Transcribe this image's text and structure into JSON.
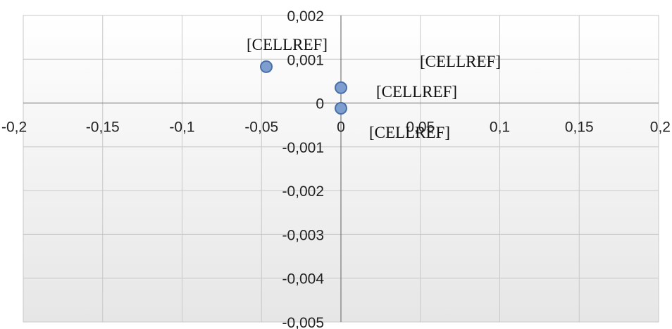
{
  "chart_data": {
    "type": "scatter",
    "xlim": [
      -0.2,
      0.2
    ],
    "ylim": [
      -0.005,
      0.002
    ],
    "grid": true,
    "x_ticks": [
      "-0,2",
      "-0,15",
      "-0,1",
      "-0,05",
      "0",
      "0,05",
      "0,1",
      "0,15",
      "0,2"
    ],
    "y_ticks": [
      "0,002",
      "0,001",
      "0",
      "-0,001",
      "-0,002",
      "-0,003",
      "-0,004",
      "-0,005"
    ],
    "x_tick_values": [
      -0.2,
      -0.15,
      -0.1,
      -0.05,
      0,
      0.05,
      0.1,
      0.15,
      0.2
    ],
    "y_tick_values": [
      0.002,
      0.001,
      0,
      -0.001,
      -0.002,
      -0.003,
      -0.004,
      -0.005
    ],
    "series": [
      {
        "points": [
          {
            "x": -0.047,
            "y": 0.00083,
            "label": "[CELLREF]"
          },
          {
            "x": 0.0,
            "y": 0.00035,
            "label": "[CELLREF]"
          },
          {
            "x": 0.0,
            "y": -0.00012,
            "label": "[CELLREF]"
          }
        ]
      }
    ],
    "extra_labels": [
      "[CELLREF]"
    ],
    "colors": {
      "marker_fill": "#7f9ed0",
      "marker_stroke": "#4a6fa8",
      "plot_bg_top": "#ffffff",
      "plot_bg_bottom": "#e6e6e6"
    }
  }
}
